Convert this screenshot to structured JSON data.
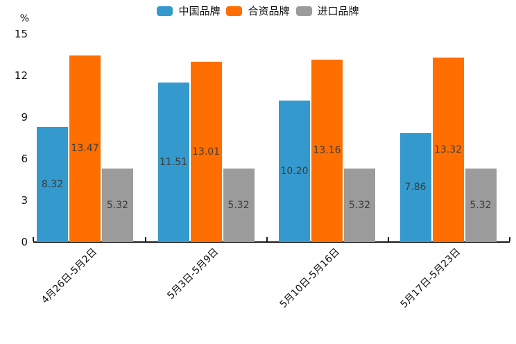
{
  "chart_data": {
    "type": "bar",
    "title": "",
    "ylabel": "%",
    "xlabel": "",
    "ylim": [
      0,
      15
    ],
    "yticks": [
      0,
      3,
      6,
      9,
      12,
      15
    ],
    "grid": false,
    "legend_position": "top",
    "categories": [
      "4月26日-5月2日",
      "5月3日-5月9日",
      "5月10日-5月16日",
      "5月17日-5月23日"
    ],
    "series": [
      {
        "name": "中国品牌",
        "color": "#3499CC",
        "values": [
          8.32,
          11.51,
          10.2,
          7.86
        ]
      },
      {
        "name": "合资品牌",
        "color": "#FF6E00",
        "values": [
          13.47,
          13.01,
          13.16,
          13.32
        ]
      },
      {
        "name": "进口品牌",
        "color": "#9B9B9B",
        "values": [
          5.32,
          5.32,
          5.32,
          5.32
        ]
      }
    ],
    "value_label_decimals": 2,
    "value_label_color": "#3d3d3d",
    "axis_color": "#1a1a1a"
  }
}
